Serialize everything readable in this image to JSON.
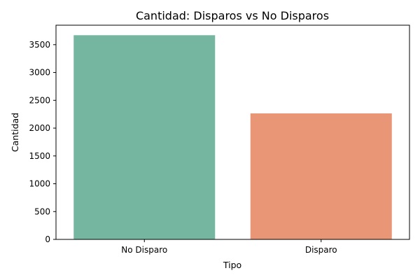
{
  "chart_data": {
    "type": "bar",
    "title": "Cantidad: Disparos vs No Disparos",
    "xlabel": "Tipo",
    "ylabel": "Cantidad",
    "categories": [
      "No Disparo",
      "Disparo"
    ],
    "values": [
      3670,
      2265
    ],
    "colors": [
      "#75b6a0",
      "#e99676"
    ],
    "ylim": [
      0,
      3850
    ],
    "yticks": [
      0,
      500,
      1000,
      1500,
      2000,
      2500,
      3000,
      3500
    ],
    "grid": false,
    "legend": "none"
  }
}
